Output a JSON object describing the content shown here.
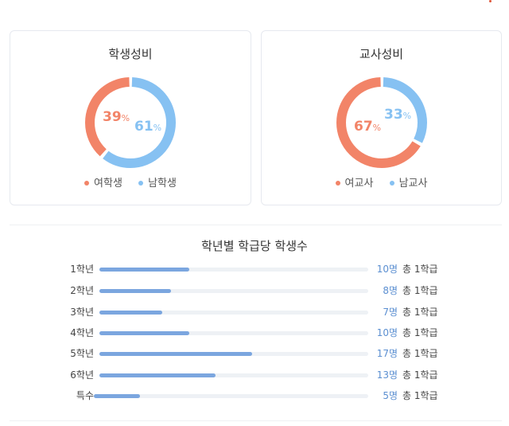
{
  "colors": {
    "female": "#f28468",
    "male": "#86c1f2",
    "bar": "#7ba6df",
    "track": "#eef1f5"
  },
  "students": {
    "title": "학생성비",
    "female_pct": 39,
    "male_pct": 61,
    "female_value": "39",
    "male_value": "61",
    "unit": "%",
    "legend_female": "여학생",
    "legend_male": "남학생"
  },
  "teachers": {
    "title": "교사성비",
    "female_pct": 67,
    "male_pct": 33,
    "female_value": "67",
    "male_value": "33",
    "unit": "%",
    "legend_female": "여교사",
    "legend_male": "남교사"
  },
  "per_class": {
    "title": "학년별 학급당 학생수",
    "max": 30,
    "rows": [
      {
        "grade": "1학년",
        "students": 10,
        "count_label": "10명",
        "classes_label": "총 1학급"
      },
      {
        "grade": "2학년",
        "students": 8,
        "count_label": "8명",
        "classes_label": "총 1학급"
      },
      {
        "grade": "3학년",
        "students": 7,
        "count_label": "7명",
        "classes_label": "총 1학급"
      },
      {
        "grade": "4학년",
        "students": 10,
        "count_label": "10명",
        "classes_label": "총 1학급"
      },
      {
        "grade": "5학년",
        "students": 17,
        "count_label": "17명",
        "classes_label": "총 1학급"
      },
      {
        "grade": "6학년",
        "students": 13,
        "count_label": "13명",
        "classes_label": "총 1학급"
      },
      {
        "grade": "특수",
        "students": 5,
        "count_label": "5명",
        "classes_label": "총 1학급"
      }
    ]
  }
}
